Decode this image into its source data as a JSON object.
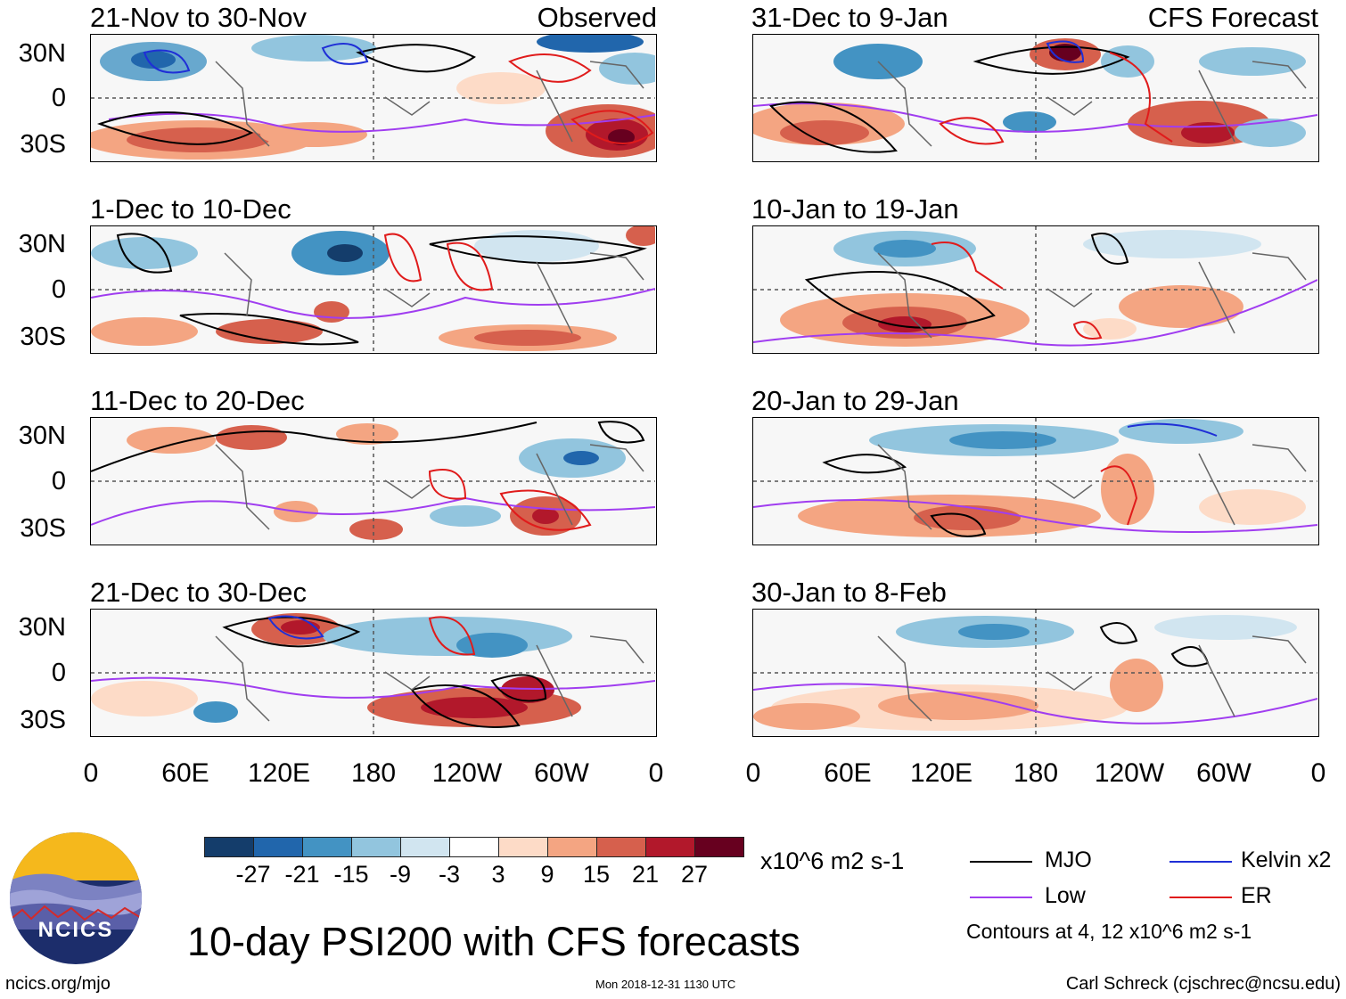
{
  "panels": {
    "observed_label": "Observed",
    "forecast_label": "CFS Forecast",
    "left": [
      {
        "title": "21-Nov to 30-Nov"
      },
      {
        "title": "1-Dec to 10-Dec"
      },
      {
        "title": "11-Dec to 20-Dec"
      },
      {
        "title": "21-Dec to 30-Dec"
      }
    ],
    "right": [
      {
        "title": "31-Dec to 9-Jan"
      },
      {
        "title": "10-Jan to 19-Jan"
      },
      {
        "title": "20-Jan to 29-Jan"
      },
      {
        "title": "30-Jan to 8-Feb"
      }
    ]
  },
  "lat_labels": [
    "30N",
    "0",
    "30S"
  ],
  "lon_labels": [
    "0",
    "60E",
    "120E",
    "180",
    "120W",
    "60W",
    "0"
  ],
  "colorbar": {
    "labels": [
      "-27",
      "-21",
      "-15",
      "-9",
      "-3",
      "3",
      "9",
      "15",
      "21",
      "27"
    ],
    "units": "x10^6 m2 s-1",
    "colors": [
      "#143d6b",
      "#2166ac",
      "#4393c3",
      "#92c5de",
      "#d1e5f0",
      "#ffffff",
      "#fddbc7",
      "#f4a582",
      "#d6604d",
      "#b2182b",
      "#67001f"
    ]
  },
  "legend": {
    "mjo": "MJO",
    "kelvin": "Kelvin x2",
    "low": "Low",
    "er": "ER",
    "contours_note": "Contours at 4, 12 x10^6 m2 s-1",
    "colors": {
      "mjo": "#000000",
      "kelvin": "#1f2fd6",
      "low": "#a03df0",
      "er": "#e01b1b"
    }
  },
  "logo_text": "NCICS",
  "main_title": "10-day PSI200 with CFS forecasts",
  "footer": {
    "url": "ncics.org/mjo",
    "timestamp": "Mon 2018-12-31 1130 UTC",
    "author": "Carl Schreck (cjschrec@ncsu.edu)"
  }
}
